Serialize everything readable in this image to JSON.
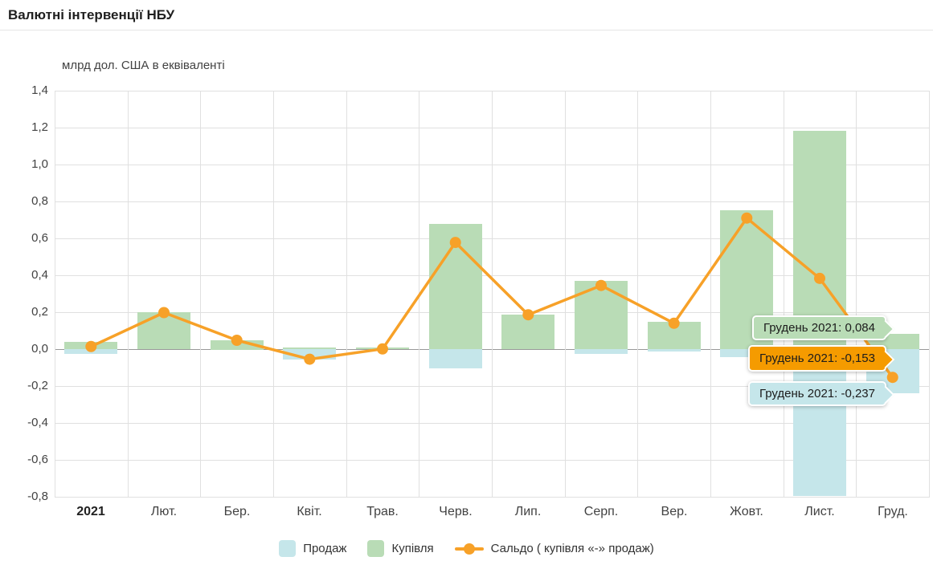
{
  "header": {
    "title": "Валютні інтервенції НБУ"
  },
  "chart_data": {
    "type": "bar+line",
    "title": "Валютні інтервенції НБУ",
    "ylabel": "млрд дол. США в еквіваленті",
    "categories": [
      "2021",
      "Лют.",
      "Бер.",
      "Квіт.",
      "Трав.",
      "Черв.",
      "Лип.",
      "Серп.",
      "Вер.",
      "Жовт.",
      "Лист.",
      "Груд."
    ],
    "series": [
      {
        "name": "Продаж",
        "type": "column",
        "color": "#c5e6ea",
        "values": [
          -0.028,
          0,
          0,
          -0.057,
          0,
          -0.105,
          0,
          -0.026,
          -0.012,
          -0.043,
          -0.795,
          -0.237
        ]
      },
      {
        "name": "Купівля",
        "type": "column",
        "color": "#b9dcb6",
        "values": [
          0.039,
          0.2,
          0.05,
          0.008,
          0.008,
          0.68,
          0.187,
          0.37,
          0.148,
          0.752,
          1.183,
          0.084
        ]
      },
      {
        "name": "Сальдо ( купівля «-» продаж)",
        "type": "line",
        "color": "#f7a128",
        "values": [
          0.014,
          0.198,
          0.048,
          -0.055,
          0.001,
          0.578,
          0.186,
          0.345,
          0.14,
          0.71,
          0.383,
          -0.153
        ]
      }
    ],
    "ylim": [
      -0.8,
      1.4
    ],
    "ytick_step": 0.2,
    "ytick_labels": [
      "1,4",
      "1,2",
      "1,0",
      "0,8",
      "0,6",
      "0,4",
      "0,2",
      "0,0",
      "-0,2",
      "-0,4",
      "-0,6",
      "-0,8"
    ],
    "grid": true,
    "grid_color": "#e0e0e0",
    "zero_line_color": "#999999",
    "legend_position": "bottom"
  },
  "tooltips": [
    {
      "label": "Грудень 2021: 0,084",
      "bg": "#b9dcb6"
    },
    {
      "label": "Грудень 2021: -0,153",
      "bg": "#f59b00"
    },
    {
      "label": "Грудень 2021: -0,237",
      "bg": "#c5e6ea"
    }
  ]
}
